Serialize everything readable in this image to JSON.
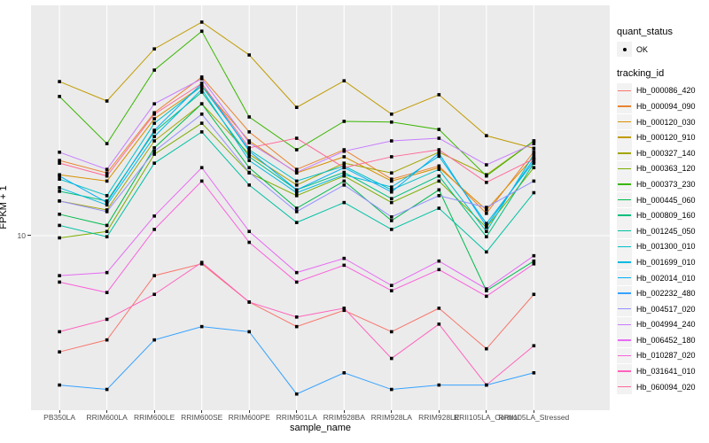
{
  "figure": {
    "background": "#FFFFFF",
    "panel_background": "#EBEBEB",
    "grid_color": "#FFFFFF",
    "point_color": "#000000"
  },
  "axes": {
    "x_title": "sample_name",
    "y_title": "FPKM + 1",
    "y_tick_label": "10"
  },
  "legend": {
    "quant_status_title": "quant_status",
    "quant_status_items": [
      {
        "label": "OK",
        "marker": "point",
        "color": "#000000"
      }
    ],
    "tracking_title": "tracking_id"
  },
  "chart_data": {
    "type": "line",
    "title": "",
    "xlabel": "sample_name",
    "ylabel": "FPKM + 1",
    "x_scale": "categorical",
    "y_scale": "log10",
    "y_ticks": [
      10
    ],
    "ylim_approx": [
      2,
      90
    ],
    "grid": "vertical line per category, horizontal line at 10",
    "legend_position": "right",
    "marker": "small black point on every value",
    "categories": [
      "PB350LA",
      "RRIM600LA",
      "RRIM600LE",
      "RRIM600SE",
      "RRIM600PE",
      "RRIM901LA",
      "RRIM928BA",
      "RRIM928LA",
      "RRIM928LE",
      "RRII105LA_Control",
      "RRII105LA_Stressed"
    ],
    "series": [
      {
        "name": "Hb_000086_420",
        "color": "#F8766D",
        "values": [
          3.4,
          3.8,
          6.9,
          7.7,
          5.4,
          4.3,
          5.0,
          4.1,
          5.1,
          3.5,
          5.8
        ]
      },
      {
        "name": "Hb_000094_090",
        "color": "#EA8331",
        "values": [
          20.1,
          17.9,
          31.3,
          43.6,
          26.2,
          18.5,
          22.2,
          16.9,
          19.1,
          12.3,
          21.8
        ]
      },
      {
        "name": "Hb_000120_030",
        "color": "#D89000",
        "values": [
          17.6,
          16.6,
          29.6,
          40.1,
          24.1,
          17.9,
          20.8,
          16.6,
          18.8,
          12.7,
          20.8
        ]
      },
      {
        "name": "Hb_000120_910",
        "color": "#C09B00",
        "values": [
          41.8,
          34.9,
          56.6,
          72.6,
          53.5,
          32.9,
          42.1,
          30.9,
          37.0,
          25.3,
          22.5
        ]
      },
      {
        "name": "Hb_000327_140",
        "color": "#A3A500",
        "values": [
          13.8,
          12.7,
          24.1,
          34.0,
          21.3,
          16.0,
          19.6,
          17.9,
          21.7,
          17.6,
          24.1
        ]
      },
      {
        "name": "Hb_000363_120",
        "color": "#7CAE00",
        "values": [
          9.8,
          10.4,
          21.3,
          28.4,
          17.9,
          14.5,
          17.4,
          13.6,
          16.6,
          10.8,
          18.8
        ]
      },
      {
        "name": "Hb_000373_230",
        "color": "#39B600",
        "values": [
          36.4,
          23.5,
          46.5,
          66.7,
          30.1,
          22.2,
          28.9,
          28.7,
          26.8,
          17.4,
          24.1
        ]
      },
      {
        "name": "Hb_000445_060",
        "color": "#00BB4E",
        "values": [
          12.2,
          11.0,
          22.6,
          34.0,
          18.8,
          12.9,
          16.6,
          11.5,
          15.3,
          6.0,
          7.9
        ]
      },
      {
        "name": "Hb_000809_160",
        "color": "#00BF7D",
        "values": [
          15.1,
          13.8,
          26.2,
          37.9,
          20.8,
          15.3,
          18.0,
          14.1,
          17.4,
          9.9,
          19.6
        ]
      },
      {
        "name": "Hb_001245_050",
        "color": "#00C1A3",
        "values": [
          11.0,
          9.9,
          19.6,
          26.2,
          16.0,
          11.3,
          13.6,
          10.6,
          12.9,
          8.6,
          14.9
        ]
      },
      {
        "name": "Hb_001300_010",
        "color": "#00BFC4",
        "values": [
          16.9,
          14.5,
          28.4,
          40.1,
          22.2,
          16.6,
          19.1,
          15.3,
          18.5,
          10.4,
          21.3
        ]
      },
      {
        "name": "Hb_001699_010",
        "color": "#00BAE0",
        "values": [
          15.6,
          13.3,
          25.1,
          38.9,
          20.1,
          14.9,
          17.6,
          15.7,
          20.9,
          11.2,
          19.9
        ]
      },
      {
        "name": "Hb_002014_010",
        "color": "#00B0F6",
        "values": [
          17.4,
          13.6,
          26.6,
          41.1,
          21.9,
          15.3,
          18.8,
          15.0,
          21.5,
          10.9,
          20.4
        ]
      },
      {
        "name": "Hb_002232_480",
        "color": "#35A2FF",
        "values": [
          2.5,
          2.4,
          3.8,
          4.3,
          4.1,
          2.3,
          2.8,
          2.4,
          2.5,
          2.5,
          2.8
        ]
      },
      {
        "name": "Hb_004517_020",
        "color": "#9590FF",
        "values": [
          13.8,
          12.5,
          21.9,
          30.9,
          18.0,
          12.5,
          16.0,
          11.9,
          14.5,
          13.0,
          16.6
        ]
      },
      {
        "name": "Hb_004994_240",
        "color": "#C77CFF",
        "values": [
          21.7,
          18.5,
          34.0,
          42.9,
          23.7,
          18.0,
          21.9,
          24.1,
          24.7,
          19.3,
          23.5
        ]
      },
      {
        "name": "Hb_006452_180",
        "color": "#E76BF3",
        "values": [
          6.9,
          7.1,
          12.0,
          18.8,
          10.4,
          7.1,
          8.1,
          6.3,
          7.9,
          6.1,
          8.3
        ]
      },
      {
        "name": "Hb_010287_020",
        "color": "#FA62DB",
        "values": [
          6.5,
          5.9,
          10.6,
          16.6,
          9.4,
          6.5,
          7.6,
          6.0,
          7.3,
          5.7,
          7.7
        ]
      },
      {
        "name": "Hb_031641_010",
        "color": "#FF62BC",
        "values": [
          4.1,
          4.6,
          5.8,
          7.8,
          5.4,
          4.7,
          5.1,
          3.2,
          4.4,
          2.5,
          3.6
        ]
      },
      {
        "name": "Hb_060094_020",
        "color": "#FF6A98",
        "values": [
          19.6,
          17.4,
          30.9,
          41.1,
          22.6,
          24.7,
          18.8,
          20.8,
          22.2,
          16.4,
          20.4
        ]
      }
    ]
  }
}
